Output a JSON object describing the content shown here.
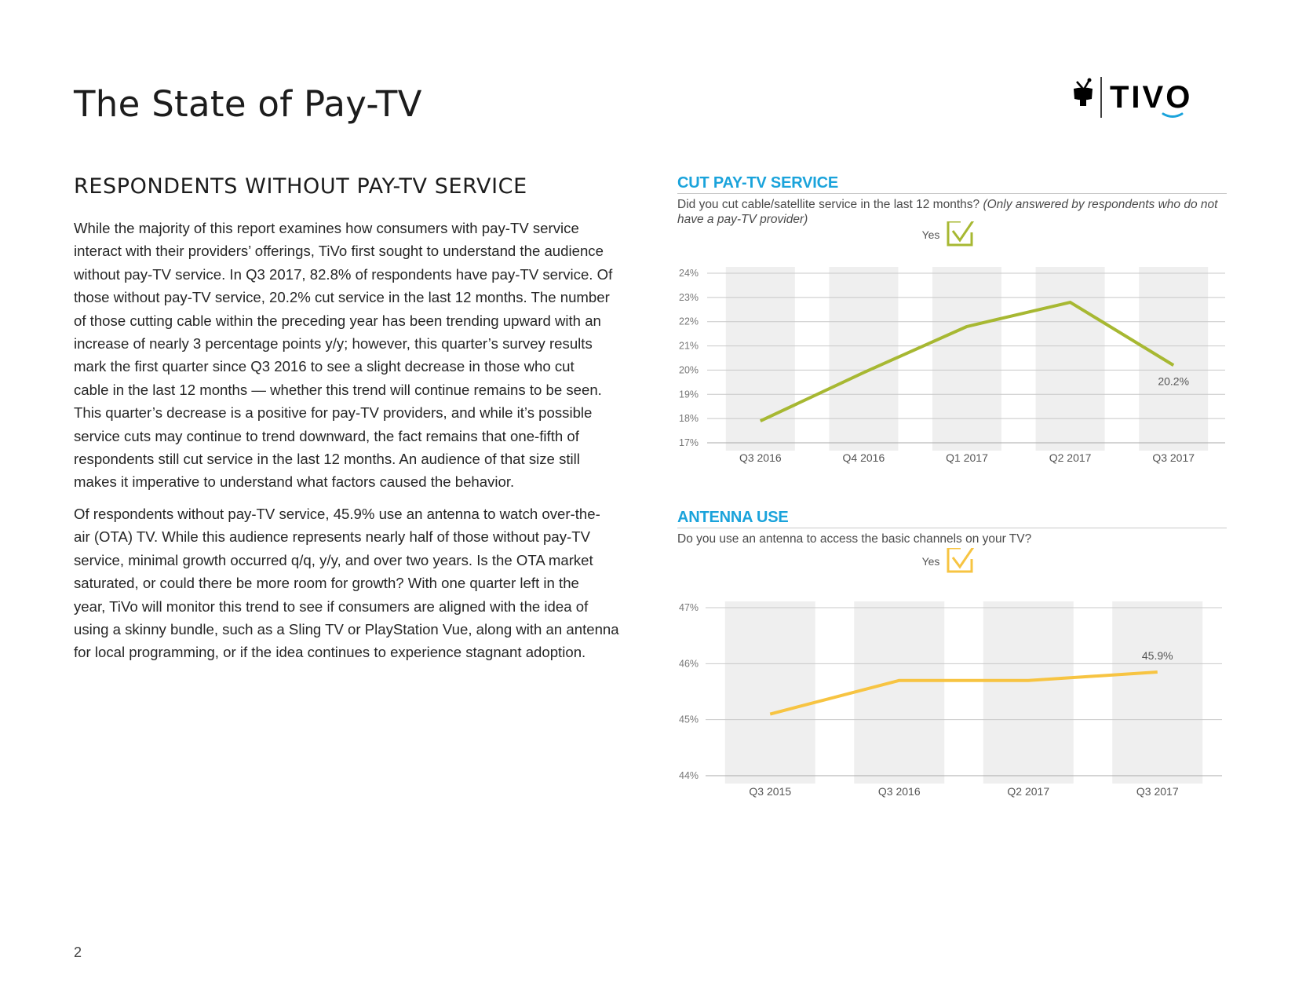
{
  "page": {
    "title": "The State of Pay-TV",
    "number": "2"
  },
  "logo": {
    "text": "TIVO",
    "icon": "tivo-tv-icon",
    "colors": {
      "text": "#000000",
      "smile": "#1aa3db"
    }
  },
  "section": {
    "heading": "RESPONDENTS WITHOUT PAY-TV SERVICE"
  },
  "body": {
    "para1_lines": [
      "While the majority of this report examines how consumers with pay-TV service",
      "interact with their providers’ offerings, TiVo first sought to understand the audience",
      "without pay-TV service. In Q3 2017, 82.8% of respondents have pay-TV service. Of",
      "those without pay-TV service, 20.2% cut service in the last 12 months. The number",
      "of those cutting cable within the preceding year has been trending upward with an",
      "increase of nearly 3 percentage points y/y; however, this quarter’s survey results",
      "mark the first quarter since Q3 2016 to see a slight decrease in those who cut",
      "cable in the last 12 months — whether this trend will continue remains to be seen.",
      "This quarter’s decrease is a positive for pay-TV providers, and while it’s possible",
      "service cuts may continue to trend downward, the fact remains that one-fifth of",
      "respondents still cut service in the last 12 months. An audience of that size still",
      "makes it imperative to understand what factors caused the behavior."
    ],
    "para2_lines": [
      "Of respondents without pay-TV service, 45.9% use an antenna to watch over-the-",
      "air (OTA) TV. While this audience represents nearly half of those without pay-TV",
      "service, minimal growth occurred q/q, y/y, and over two years. Is the OTA market",
      "saturated, or could there be more room for growth? With one quarter left in the",
      "year, TiVo will monitor this trend to see if consumers are aligned with the idea of",
      "using a skinny bundle, such as a Sling TV or PlayStation Vue, along with an antenna",
      "for local programming, or if the idea continues to experience stagnant adoption."
    ]
  },
  "chart_data": [
    {
      "type": "line",
      "title": "CUT PAY-TV SERVICE",
      "subtitle": "Did you cut cable/satellite service in the last 12 months?",
      "subtitle_note": "(Only answered by respondents who do not have a pay-TV provider)",
      "legend": "Yes",
      "legend_placement": "top-center",
      "categories": [
        "Q3 2016",
        "Q4 2016",
        "Q1 2017",
        "Q2 2017",
        "Q3 2017"
      ],
      "series": [
        {
          "name": "Yes",
          "values": [
            17.9,
            19.9,
            21.8,
            22.8,
            20.2
          ]
        }
      ],
      "y_ticks": [
        "24%",
        "23%",
        "22%",
        "21%",
        "20%",
        "19%",
        "18%",
        "17%"
      ],
      "ylim": [
        17,
        24
      ],
      "data_label": {
        "index": 4,
        "text": "20.2%"
      },
      "color": "#a7b832",
      "grid": true
    },
    {
      "type": "line",
      "title": "ANTENNA USE",
      "subtitle": "Do you use an antenna to access the basic channels on your TV?",
      "legend": "Yes",
      "legend_placement": "top-center",
      "categories": [
        "Q3 2015",
        "Q3 2016",
        "Q2 2017",
        "Q3 2017"
      ],
      "series": [
        {
          "name": "Yes",
          "values": [
            45.1,
            45.7,
            45.7,
            45.85
          ]
        }
      ],
      "y_ticks": [
        "47%",
        "46%",
        "45%",
        "44%"
      ],
      "ylim": [
        44,
        47
      ],
      "data_label": {
        "index": 3,
        "text": "45.9%"
      },
      "color": "#f7c442",
      "grid": true
    }
  ]
}
